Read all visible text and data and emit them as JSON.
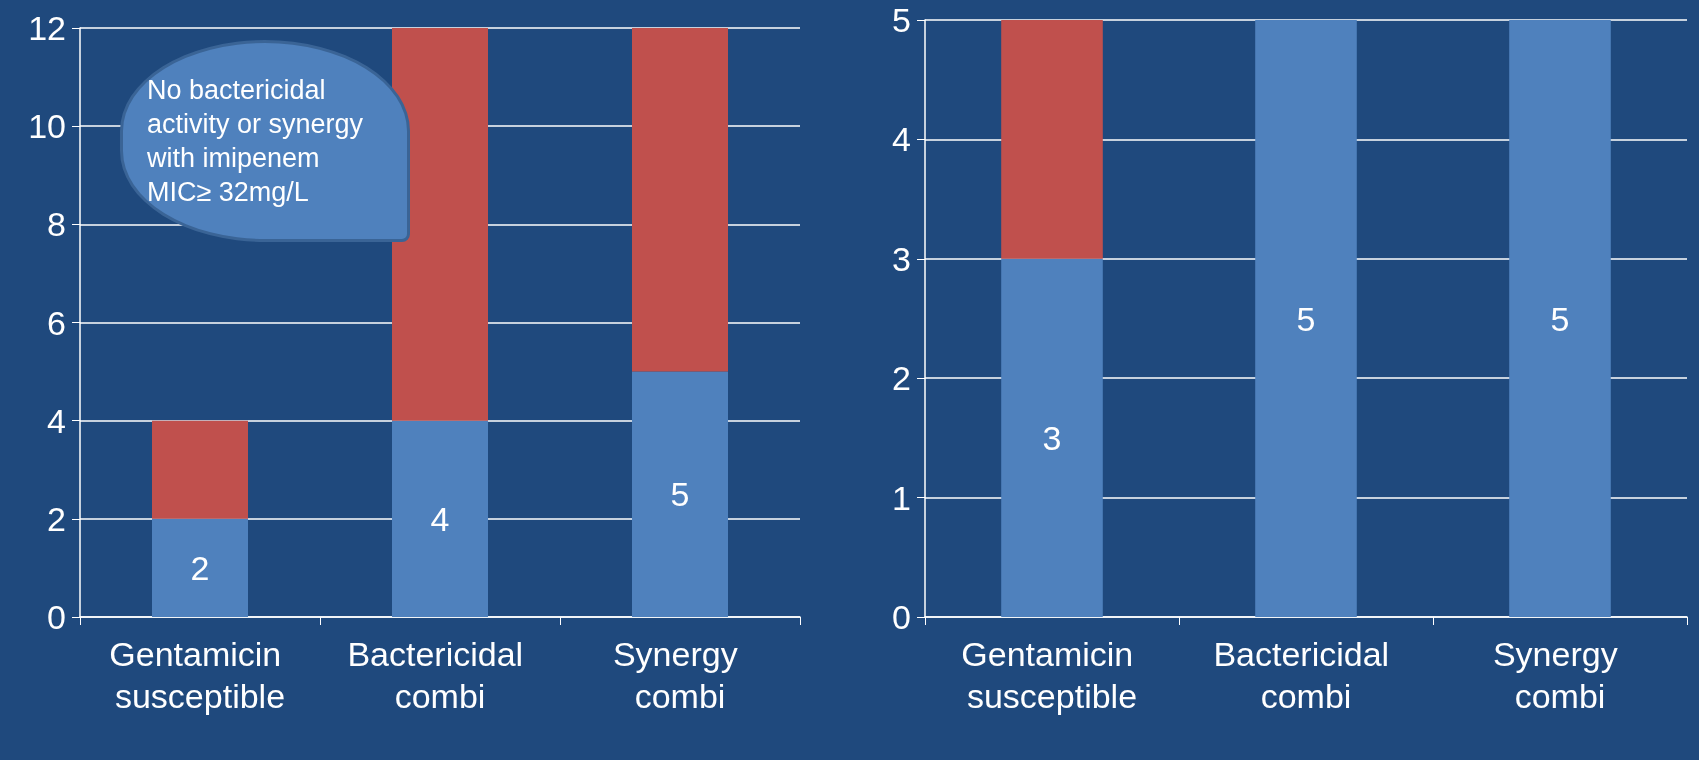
{
  "chart_data": [
    {
      "type": "bar",
      "stacked": true,
      "categories": [
        "Gentamicin susceptible",
        "Bactericidal combi",
        "Synergy combi"
      ],
      "series": [
        {
          "color": "#4f81bd",
          "values": [
            2,
            4,
            5
          ],
          "value_labels": [
            "2",
            "4",
            "5"
          ]
        },
        {
          "color": "#c0504d",
          "values": [
            2,
            8,
            7
          ]
        }
      ],
      "ylim": [
        0,
        12
      ],
      "yticks": [
        0,
        2,
        4,
        6,
        8,
        10,
        12
      ],
      "grid": "y",
      "annotations": [
        "No bactericidal activity or synergy with imipenem MIC≥ 32mg/L"
      ]
    },
    {
      "type": "bar",
      "stacked": true,
      "categories": [
        "Gentamicin susceptible",
        "Bactericidal combi",
        "Synergy combi"
      ],
      "series": [
        {
          "color": "#4f81bd",
          "values": [
            3,
            5,
            5
          ],
          "value_labels": [
            "3",
            "5",
            "5"
          ]
        },
        {
          "color": "#c0504d",
          "values": [
            2,
            null,
            null
          ]
        }
      ],
      "ylim": [
        0,
        5
      ],
      "yticks": [
        0,
        1,
        2,
        3,
        4,
        5
      ],
      "grid": "y"
    }
  ]
}
